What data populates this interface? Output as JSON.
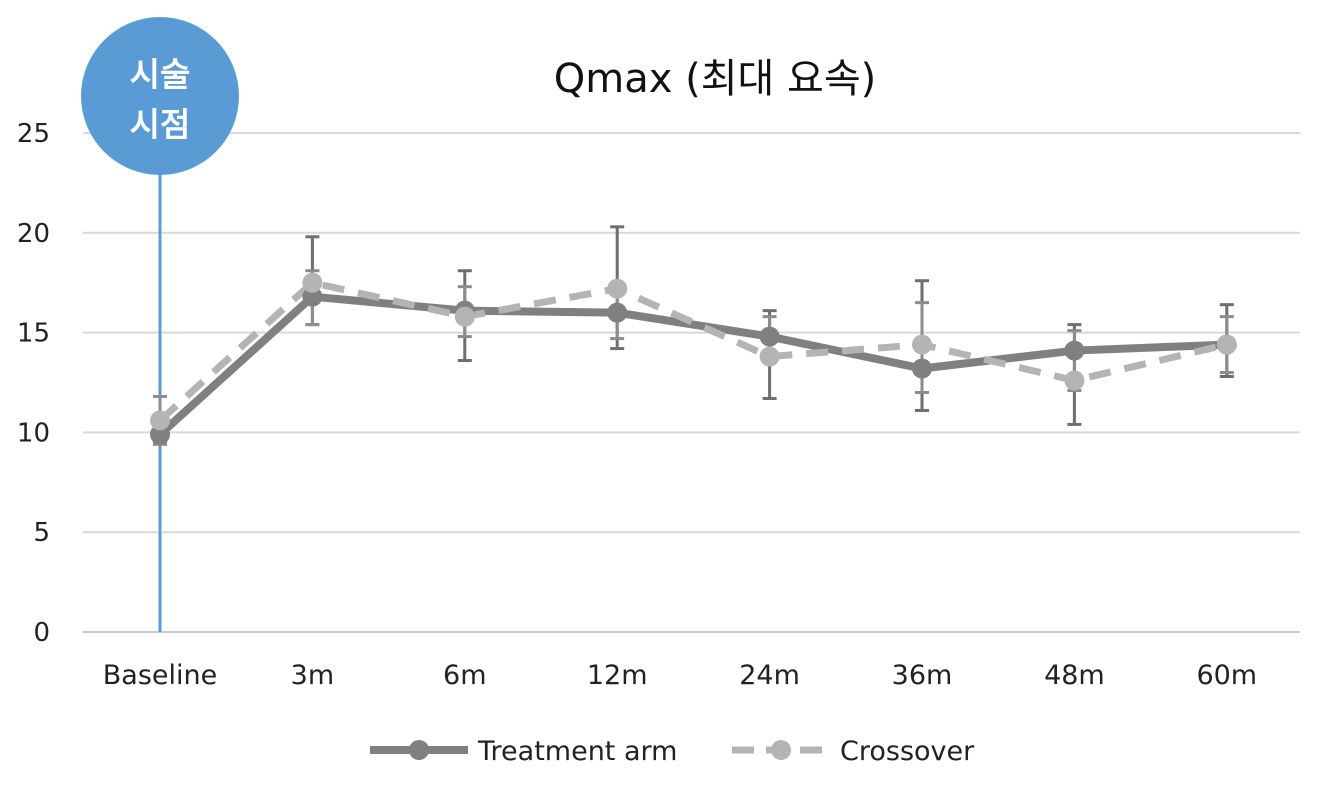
{
  "chart_data": {
    "type": "line",
    "title": "Qmax (최대 요속)",
    "xlabel": "",
    "ylabel": "",
    "categories": [
      "Baseline",
      "3m",
      "6m",
      "12m",
      "24m",
      "36m",
      "48m",
      "60m"
    ],
    "ylim": [
      0,
      25
    ],
    "yticks": [
      0,
      5,
      10,
      15,
      20,
      25
    ],
    "grid": true,
    "legend_position": "bottom-center",
    "series": [
      {
        "name": "Treatment arm",
        "style": "solid",
        "color": "#808080",
        "values": [
          9.9,
          16.8,
          16.1,
          16.0,
          14.8,
          13.2,
          14.1,
          14.4
        ],
        "error_high": [
          10.3,
          19.8,
          18.1,
          20.3,
          16.1,
          17.6,
          15.4,
          16.4
        ],
        "error_low": [
          9.5,
          15.4,
          13.6,
          14.2,
          11.7,
          11.1,
          10.4,
          12.8
        ]
      },
      {
        "name": "Crossover",
        "style": "dashed",
        "color": "#b4b4b4",
        "values": [
          10.6,
          17.5,
          15.8,
          17.2,
          13.8,
          14.4,
          12.6,
          14.4
        ],
        "error_high": [
          11.8,
          18.1,
          17.3,
          17.2,
          15.8,
          16.5,
          15.1,
          15.8
        ],
        "error_low": [
          9.4,
          15.4,
          14.8,
          14.7,
          13.8,
          12.0,
          12.1,
          13.0
        ]
      }
    ],
    "annotation": {
      "text_line1": "시술",
      "text_line2": "시점",
      "category": "Baseline",
      "color": "#5b9bd5"
    },
    "axis_line_color": "#c8c8c8",
    "grid_color": "#d9d9d9"
  }
}
